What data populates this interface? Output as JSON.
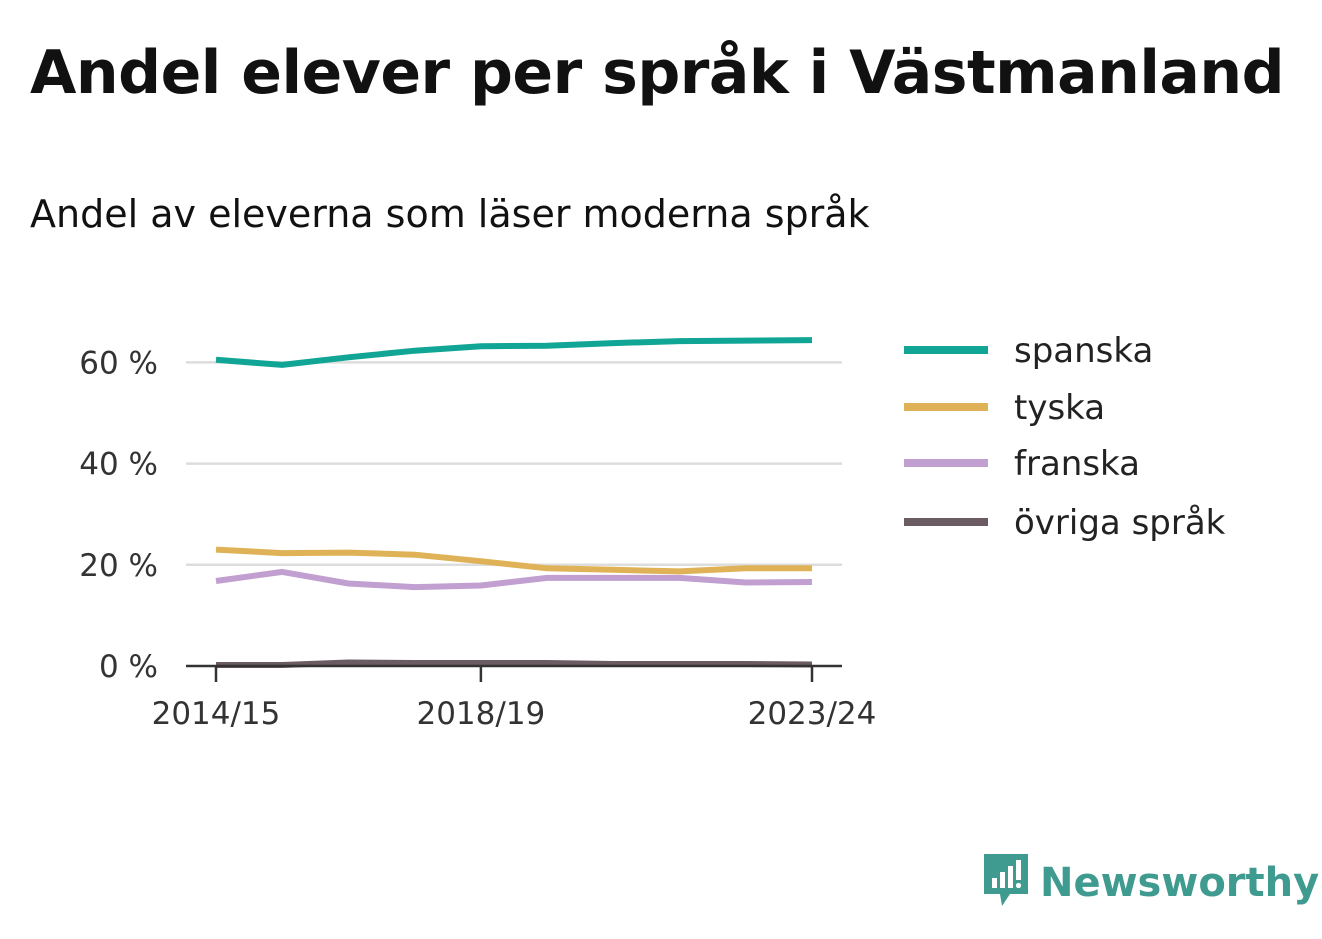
{
  "title": "Andel elever per språk i Västmanland",
  "subtitle": "Andel av eleverna som läser moderna språk",
  "brand": {
    "name": "Newsworthy",
    "icon": "newsworthy-logo-icon",
    "color": "#3f9b8f"
  },
  "chart_data": {
    "type": "line",
    "x": [
      "2014/15",
      "2015/16",
      "2016/17",
      "2017/18",
      "2018/19",
      "2019/20",
      "2020/21",
      "2021/22",
      "2022/23",
      "2023/24"
    ],
    "x_tick_labels": [
      "2014/15",
      "2018/19",
      "2023/24"
    ],
    "y_ticks": [
      0,
      20,
      40,
      60
    ],
    "y_tick_labels": [
      "0 %",
      "20 %",
      "40 %",
      "60 %"
    ],
    "ylim": [
      0,
      66
    ],
    "grid": true,
    "legend_position": "right",
    "series": [
      {
        "name": "spanska",
        "color": "#11a595",
        "values": [
          60.5,
          59.5,
          61,
          62.3,
          63.2,
          63.3,
          63.8,
          64.2,
          64.3,
          64.4
        ]
      },
      {
        "name": "tyska",
        "color": "#dfb257",
        "values": [
          23,
          22.3,
          22.4,
          22,
          20.7,
          19.3,
          19,
          18.7,
          19.3,
          19.3
        ]
      },
      {
        "name": "franska",
        "color": "#c19fd0",
        "values": [
          16.8,
          18.6,
          16.3,
          15.6,
          15.9,
          17.4,
          17.4,
          17.4,
          16.5,
          16.6
        ]
      },
      {
        "name": "övriga språk",
        "color": "#6b5b63",
        "values": [
          0.2,
          0.2,
          0.7,
          0.6,
          0.6,
          0.6,
          0.4,
          0.4,
          0.4,
          0.3
        ]
      }
    ]
  }
}
